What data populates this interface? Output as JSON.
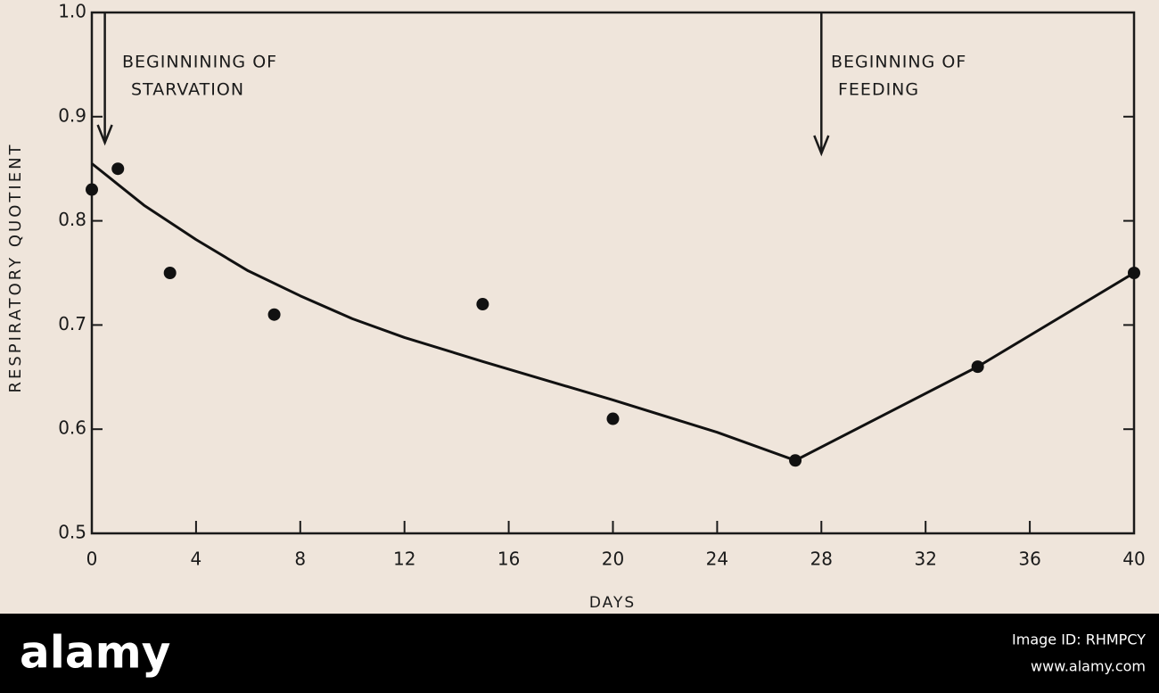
{
  "chart_data": {
    "type": "scatter",
    "xlabel": "DAYS",
    "ylabel": "RESPIRATORY QUOTIENT",
    "xlim": [
      0,
      40
    ],
    "xticks": [
      0,
      4,
      8,
      12,
      16,
      20,
      24,
      28,
      32,
      36,
      40
    ],
    "ylim": [
      0.5,
      1.0
    ],
    "yticks": [
      0.5,
      0.6,
      0.7,
      0.8,
      0.9,
      {
        "value": 1.0,
        "label": "1.0"
      }
    ],
    "grid": false,
    "series": [
      {
        "style": "markers",
        "color": "#111111",
        "x": [
          0,
          1,
          3,
          7,
          15,
          20,
          27,
          34,
          40
        ],
        "values": [
          0.83,
          0.85,
          0.75,
          0.71,
          0.72,
          0.61,
          0.57,
          0.66,
          0.75
        ]
      },
      {
        "style": "line",
        "color": "#111111",
        "x": [
          0,
          2,
          4,
          6,
          8,
          10,
          12,
          15,
          20,
          24,
          27,
          34,
          40
        ],
        "values": [
          0.855,
          0.815,
          0.782,
          0.752,
          0.728,
          0.706,
          0.688,
          0.665,
          0.628,
          0.597,
          0.57,
          0.66,
          0.75
        ]
      }
    ],
    "annotations": [
      {
        "lines": [
          "BEGINNINING OF",
          "STARVATION"
        ],
        "x": 0.5
      },
      {
        "lines": [
          "BEGINNING OF",
          "FEEDING"
        ],
        "x": 28
      }
    ]
  },
  "watermark": {
    "brand": "alamy",
    "image_id": "Image ID: RHMPCY",
    "url": "www.alamy.com"
  }
}
